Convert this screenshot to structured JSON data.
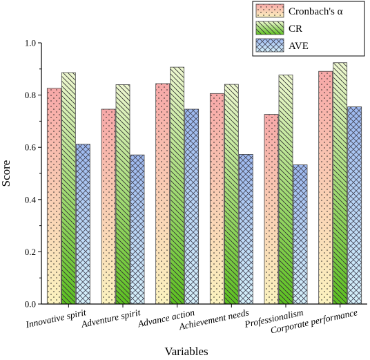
{
  "chart_data": {
    "type": "bar",
    "xlabel": "Variables",
    "ylabel": "Score",
    "ylim": [
      0,
      1.0
    ],
    "yticks": [
      "0.0",
      "0.2",
      "0.4",
      "0.6",
      "0.8",
      "1.0"
    ],
    "categories": [
      "Innovative spirit",
      "Adventure spirit",
      "Advance action",
      "Achievement needs",
      "Professionalism",
      "Corporate performance"
    ],
    "series": [
      {
        "name": "Cronbach's α",
        "values": [
          0.826,
          0.746,
          0.844,
          0.806,
          0.726,
          0.891
        ],
        "color": "#f4a6a6"
      },
      {
        "name": "CR",
        "values": [
          0.886,
          0.84,
          0.907,
          0.841,
          0.877,
          0.924
        ],
        "color": "#6cc832"
      },
      {
        "name": "AVE",
        "values": [
          0.612,
          0.571,
          0.746,
          0.573,
          0.533,
          0.755
        ],
        "color": "#9fbff2"
      }
    ],
    "grid": false,
    "legend_position": "top-right"
  }
}
